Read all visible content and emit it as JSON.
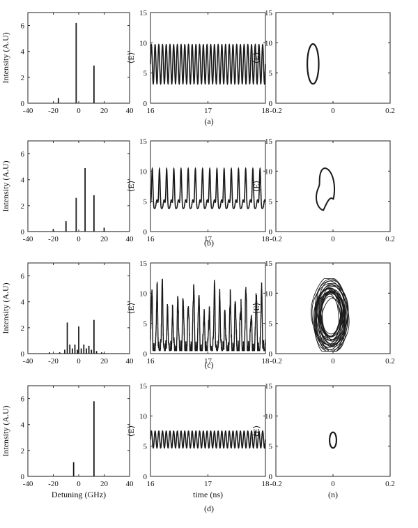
{
  "panel_labels": [
    "(a)",
    "(b)",
    "(c)",
    "(d)"
  ],
  "column_labels": {
    "spectrum_x": "Detuning (GHz)",
    "spectrum_y": "Intensity (A.U)",
    "time_x": "time (ns)",
    "time_y": "⟨E⟩",
    "phase_x": "(n)",
    "phase_y": "⟨E⟩"
  },
  "chart_data": [
    {
      "row": "a",
      "kind": "spectrum",
      "type": "bar",
      "xlabel": "",
      "ylabel": "Intensity (A.U)",
      "xlim": [
        -40,
        40
      ],
      "ylim": [
        0,
        7
      ],
      "xticks": [
        -40,
        -20,
        0,
        20,
        40
      ],
      "yticks": [
        0,
        2,
        4,
        6
      ],
      "x": [
        -16,
        -2,
        12
      ],
      "values": [
        0.4,
        6.2,
        2.9
      ]
    },
    {
      "row": "a",
      "kind": "time",
      "type": "line",
      "xlabel": "",
      "ylabel": "⟨E⟩",
      "xlim": [
        16,
        18
      ],
      "ylim": [
        0,
        15
      ],
      "xticks": [
        16,
        17,
        18
      ],
      "yticks": [
        0,
        5,
        10,
        15
      ],
      "waveform": "sinusoid",
      "y_min": 3.2,
      "y_max": 9.7,
      "periods": 31
    },
    {
      "row": "a",
      "kind": "phase",
      "type": "line",
      "xlabel": "",
      "ylabel": "⟨E⟩",
      "xlim": [
        -0.2,
        0.2
      ],
      "ylim": [
        0,
        15
      ],
      "xticks": [
        -0.2,
        0,
        0.2
      ],
      "yticks": [
        0,
        5,
        10,
        15
      ],
      "orbit": "ellipse",
      "center": [
        -0.07,
        6.5
      ],
      "radius": [
        0.02,
        3.3
      ]
    },
    {
      "row": "b",
      "kind": "spectrum",
      "type": "bar",
      "xlabel": "",
      "ylabel": "Intensity (A.U)",
      "xlim": [
        -40,
        40
      ],
      "ylim": [
        0,
        7
      ],
      "xticks": [
        -40,
        -20,
        0,
        20,
        40
      ],
      "yticks": [
        0,
        2,
        4,
        6
      ],
      "x": [
        -20,
        -10,
        -2,
        5,
        12,
        20
      ],
      "values": [
        0.2,
        0.8,
        2.6,
        4.9,
        2.8,
        0.3
      ]
    },
    {
      "row": "b",
      "kind": "time",
      "type": "line",
      "xlabel": "",
      "ylabel": "⟨E⟩",
      "xlim": [
        16,
        18
      ],
      "ylim": [
        0,
        15
      ],
      "xticks": [
        16,
        17,
        18
      ],
      "yticks": [
        0,
        5,
        10,
        15
      ],
      "waveform": "double-peaked",
      "y_min": 3.8,
      "y_max": 10.4,
      "periods": 16
    },
    {
      "row": "b",
      "kind": "phase",
      "type": "line",
      "xlabel": "",
      "ylabel": "⟨E⟩",
      "xlim": [
        -0.2,
        0.2
      ],
      "ylim": [
        0,
        15
      ],
      "xticks": [
        -0.2,
        0,
        0.2
      ],
      "yticks": [
        0,
        5,
        10,
        15
      ],
      "orbit": "cardioid",
      "center": [
        -0.03,
        7.0
      ],
      "radius": [
        0.035,
        3.5
      ]
    },
    {
      "row": "c",
      "kind": "spectrum",
      "type": "bar",
      "xlabel": "",
      "ylabel": "Intensity (A.U)",
      "xlim": [
        -40,
        40
      ],
      "ylim": [
        0,
        7
      ],
      "xticks": [
        -40,
        -20,
        0,
        20,
        40
      ],
      "yticks": [
        0,
        2,
        4,
        6
      ],
      "x": [
        -23,
        -15,
        -11,
        -9,
        -7,
        -5,
        -3,
        -1,
        0,
        2,
        4,
        6,
        8,
        10,
        12,
        14,
        18,
        20
      ],
      "values": [
        0.1,
        0.1,
        0.3,
        2.4,
        0.7,
        0.4,
        0.7,
        0.3,
        2.1,
        0.4,
        0.7,
        0.4,
        0.6,
        0.3,
        2.6,
        0.2,
        0.1,
        0.05
      ]
    },
    {
      "row": "c",
      "kind": "time",
      "type": "line",
      "xlabel": "",
      "ylabel": "⟨E⟩",
      "xlim": [
        16,
        18
      ],
      "ylim": [
        0,
        15
      ],
      "xticks": [
        16,
        17,
        18
      ],
      "yticks": [
        0,
        5,
        10,
        15
      ],
      "waveform": "chaotic",
      "y_min": 0.5,
      "y_max": 12.3,
      "periods": 22
    },
    {
      "row": "c",
      "kind": "phase",
      "type": "line",
      "xlabel": "",
      "ylabel": "⟨E⟩",
      "xlim": [
        -0.2,
        0.2
      ],
      "ylim": [
        0,
        15
      ],
      "xticks": [
        -0.2,
        0,
        0.2
      ],
      "yticks": [
        0,
        5,
        10,
        15
      ],
      "orbit": "chaotic",
      "center": [
        -0.01,
        6.3
      ],
      "radius": [
        0.06,
        6.0
      ]
    },
    {
      "row": "d",
      "kind": "spectrum",
      "type": "bar",
      "xlabel": "Detuning (GHz)",
      "ylabel": "Intensity (A.U)",
      "xlim": [
        -40,
        40
      ],
      "ylim": [
        0,
        7
      ],
      "xticks": [
        -40,
        -20,
        0,
        20,
        40
      ],
      "yticks": [
        0,
        2,
        4,
        6
      ],
      "x": [
        -4,
        12
      ],
      "values": [
        1.1,
        5.8
      ]
    },
    {
      "row": "d",
      "kind": "time",
      "type": "line",
      "xlabel": "time (ns)",
      "ylabel": "⟨E⟩",
      "xlim": [
        16,
        18
      ],
      "ylim": [
        0,
        15
      ],
      "xticks": [
        16,
        17,
        18
      ],
      "yticks": [
        0,
        5,
        10,
        15
      ],
      "waveform": "sinusoid",
      "y_min": 4.7,
      "y_max": 7.5,
      "periods": 31
    },
    {
      "row": "d",
      "kind": "phase",
      "type": "line",
      "xlabel": "(n)",
      "ylabel": "⟨E⟩",
      "xlim": [
        -0.2,
        0.2
      ],
      "ylim": [
        0,
        15
      ],
      "xticks": [
        -0.2,
        0,
        0.2
      ],
      "yticks": [
        0,
        5,
        10,
        15
      ],
      "orbit": "ellipse",
      "center": [
        0.0,
        6.0
      ],
      "radius": [
        0.012,
        1.3
      ]
    }
  ]
}
